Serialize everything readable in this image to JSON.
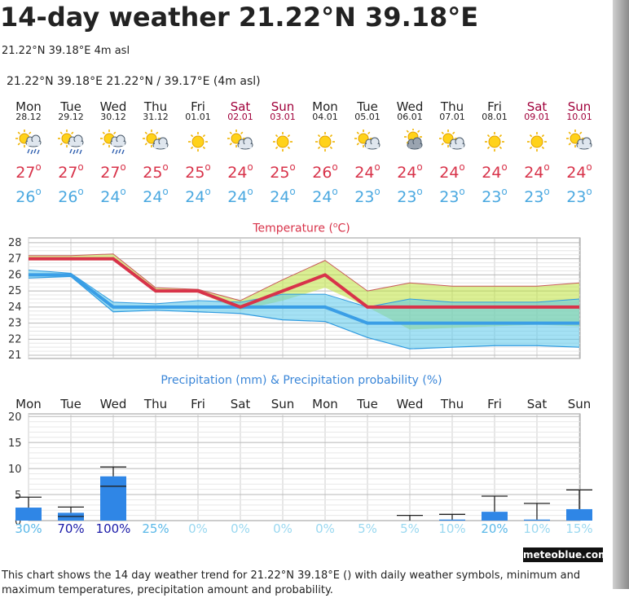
{
  "page": {
    "title": "14-day weather 21.22°N 39.18°E",
    "subtitle": "21.22°N 39.18°E 4m asl",
    "location_line": "21.22°N 39.18°E  21.22°N / 39.17°E (4m asl)",
    "brand": "meteoblue.com",
    "note": "This chart shows the 14 day weather trend for 21.22°N 39.18°E () with daily weather symbols, minimum and maximum temperatures, precipitation amount and probability."
  },
  "days": [
    {
      "name": "Mon",
      "date": "28.12",
      "weekend": false,
      "icon": "sun-cloud-rain-icon",
      "tmax": "27",
      "tmin": "26"
    },
    {
      "name": "Tue",
      "date": "29.12",
      "weekend": false,
      "icon": "sun-cloud-rain-icon",
      "tmax": "27",
      "tmin": "26"
    },
    {
      "name": "Wed",
      "date": "30.12",
      "weekend": false,
      "icon": "sun-cloud-rain-icon",
      "tmax": "27",
      "tmin": "24"
    },
    {
      "name": "Thu",
      "date": "31.12",
      "weekend": false,
      "icon": "sun-cloud-icon",
      "tmax": "25",
      "tmin": "24"
    },
    {
      "name": "Fri",
      "date": "01.01",
      "weekend": false,
      "icon": "sun-icon",
      "tmax": "25",
      "tmin": "24"
    },
    {
      "name": "Sat",
      "date": "02.01",
      "weekend": true,
      "icon": "sun-cloud-icon",
      "tmax": "24",
      "tmin": "24"
    },
    {
      "name": "Sun",
      "date": "03.01",
      "weekend": true,
      "icon": "sun-icon",
      "tmax": "25",
      "tmin": "24"
    },
    {
      "name": "Mon",
      "date": "04.01",
      "weekend": false,
      "icon": "sun-icon",
      "tmax": "26",
      "tmin": "24"
    },
    {
      "name": "Tue",
      "date": "05.01",
      "weekend": false,
      "icon": "sun-cloud-icon",
      "tmax": "24",
      "tmin": "23"
    },
    {
      "name": "Wed",
      "date": "06.01",
      "weekend": false,
      "icon": "cloud-sun-icon",
      "tmax": "24",
      "tmin": "23"
    },
    {
      "name": "Thu",
      "date": "07.01",
      "weekend": false,
      "icon": "sun-cloud-icon",
      "tmax": "24",
      "tmin": "23"
    },
    {
      "name": "Fri",
      "date": "08.01",
      "weekend": false,
      "icon": "sun-icon",
      "tmax": "24",
      "tmin": "23"
    },
    {
      "name": "Sat",
      "date": "09.01",
      "weekend": true,
      "icon": "sun-icon",
      "tmax": "24",
      "tmin": "23"
    },
    {
      "name": "Sun",
      "date": "10.01",
      "weekend": true,
      "icon": "sun-cloud-icon",
      "tmax": "24",
      "tmin": "23"
    }
  ],
  "colors": {
    "max_temp": "#d8334a",
    "min_temp": "#4aa8e0",
    "weekend": "#a0003a",
    "precip_bar": "#2f86e6",
    "prob_high": "#1a1aa8",
    "prob_mid": "#5ab8e8",
    "prob_low": "#9ad8f0"
  },
  "chart_data": [
    {
      "type": "line",
      "title": "Temperature (°C)",
      "title_parts": {
        "before": "Temperature (",
        "sup": "o",
        "after": "C)"
      },
      "yticks": [
        21,
        22,
        23,
        24,
        25,
        26,
        27,
        28
      ],
      "ylim": [
        20.8,
        28.3
      ],
      "grid": true,
      "categories": [
        "Mon",
        "Tue",
        "Wed",
        "Thu",
        "Fri",
        "Sat",
        "Sun",
        "Mon",
        "Tue",
        "Wed",
        "Thu",
        "Fri",
        "Sat",
        "Sun"
      ],
      "series": [
        {
          "name": "max",
          "values": [
            27,
            27,
            27,
            25,
            25,
            24,
            25,
            26,
            24,
            24,
            24,
            24,
            24,
            24
          ]
        },
        {
          "name": "min",
          "values": [
            26,
            26,
            24,
            24,
            24,
            24,
            24,
            24,
            23,
            23,
            23,
            23,
            23,
            23
          ]
        }
      ],
      "bands": [
        {
          "name": "max-range-upper",
          "values": [
            27.2,
            27.2,
            27.3,
            25.2,
            25.1,
            24.4,
            25.7,
            26.9,
            25.0,
            25.5,
            25.3,
            25.3,
            25.3,
            25.5
          ]
        },
        {
          "name": "max-range-lower",
          "values": [
            26.9,
            26.9,
            26.9,
            24.9,
            24.9,
            23.8,
            24.4,
            25.2,
            24.0,
            22.6,
            22.7,
            22.8,
            22.9,
            22.8
          ]
        },
        {
          "name": "min-range-upper",
          "values": [
            26.3,
            26.1,
            24.3,
            24.2,
            24.4,
            24.3,
            24.8,
            24.8,
            24.0,
            24.5,
            24.3,
            24.3,
            24.3,
            24.5
          ]
        },
        {
          "name": "min-range-lower",
          "values": [
            25.8,
            25.9,
            23.7,
            23.8,
            23.7,
            23.6,
            23.2,
            23.1,
            22.1,
            21.4,
            21.5,
            21.6,
            21.6,
            21.5
          ]
        }
      ]
    },
    {
      "type": "bar",
      "title": "Precipitation (mm) & Precipitation probability (%)",
      "yticks": [
        0,
        5,
        10,
        15,
        20
      ],
      "ylim": [
        0,
        20.5
      ],
      "grid": true,
      "categories": [
        "Mon",
        "Tue",
        "Wed",
        "Thu",
        "Fri",
        "Sat",
        "Sun",
        "Mon",
        "Tue",
        "Wed",
        "Thu",
        "Fri",
        "Sat",
        "Sun"
      ],
      "values": [
        2.5,
        1.5,
        8.5,
        0,
        0,
        0,
        0,
        0,
        0,
        0,
        0.2,
        1.7,
        0.2,
        2.2
      ],
      "err_low": [
        0,
        0.8,
        6.6,
        0,
        0,
        0,
        0,
        0,
        0,
        0,
        0,
        0,
        0,
        0
      ],
      "err_high": [
        4.5,
        2.6,
        10.3,
        0,
        0,
        0,
        0,
        0,
        0,
        1.0,
        1.2,
        4.7,
        3.3,
        5.9
      ],
      "probabilities": [
        "30%",
        "70%",
        "100%",
        "25%",
        "0%",
        "0%",
        "0%",
        "0%",
        "5%",
        "5%",
        "10%",
        "20%",
        "10%",
        "15%"
      ],
      "probability_values": [
        30,
        70,
        100,
        25,
        0,
        0,
        0,
        0,
        5,
        5,
        10,
        20,
        10,
        15
      ]
    }
  ]
}
